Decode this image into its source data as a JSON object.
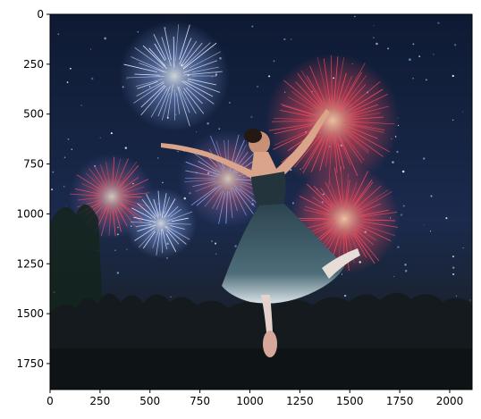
{
  "figure": {
    "image_description_icon": "fireworks-ballerina-photo",
    "x_axis": {
      "ticks": [
        "0",
        "250",
        "500",
        "750",
        "1000",
        "1250",
        "1500",
        "1750",
        "2000"
      ],
      "tick_values": [
        0,
        250,
        500,
        750,
        1000,
        1250,
        1500,
        1750,
        2000
      ],
      "range": [
        0,
        2112
      ]
    },
    "y_axis": {
      "ticks": [
        "0",
        "250",
        "500",
        "750",
        "1000",
        "1250",
        "1500",
        "1750"
      ],
      "tick_values": [
        0,
        250,
        500,
        750,
        1000,
        1250,
        1500,
        1750
      ],
      "range": [
        0,
        1880
      ],
      "inverted": true
    },
    "colors": {
      "sky_top": "#0e1a33",
      "sky_mid": "#1b2a4d",
      "firework_red": "#ff4d5e",
      "firework_blue": "#8fb3ff",
      "firework_white": "#f3f3ff",
      "dress": "#3d5865",
      "crowd": "#141a1e"
    }
  }
}
